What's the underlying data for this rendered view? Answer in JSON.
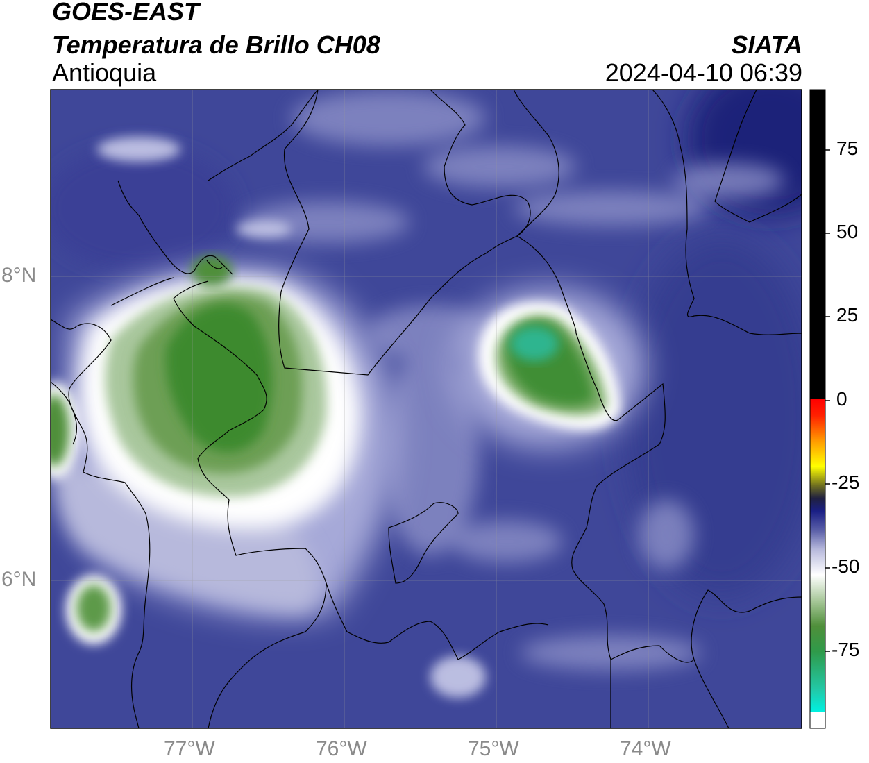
{
  "header": {
    "satellite": "GOES-EAST",
    "product": "Temperatura de Brillo CH08",
    "region": "Antioquia",
    "org": "SIATA",
    "datetime": "2024-04-10 06:39"
  },
  "axes": {
    "x_ticks": [
      "77°W",
      "76°W",
      "75°W",
      "74°W"
    ],
    "y_ticks": [
      "8°N",
      "6°N"
    ]
  },
  "colorbar": {
    "ticks": [
      "75",
      "50",
      "25",
      "0",
      "-25",
      "-50",
      "-75"
    ]
  },
  "colors": {
    "background_blue": "#3f4799",
    "dark_blue": "#2a2f80",
    "light_lavender": "#b9bce0",
    "white_ring": "#ffffff",
    "green_mid": "#6d9f55",
    "green_dark": "#3c8a2e",
    "teal": "#2fb58f"
  }
}
